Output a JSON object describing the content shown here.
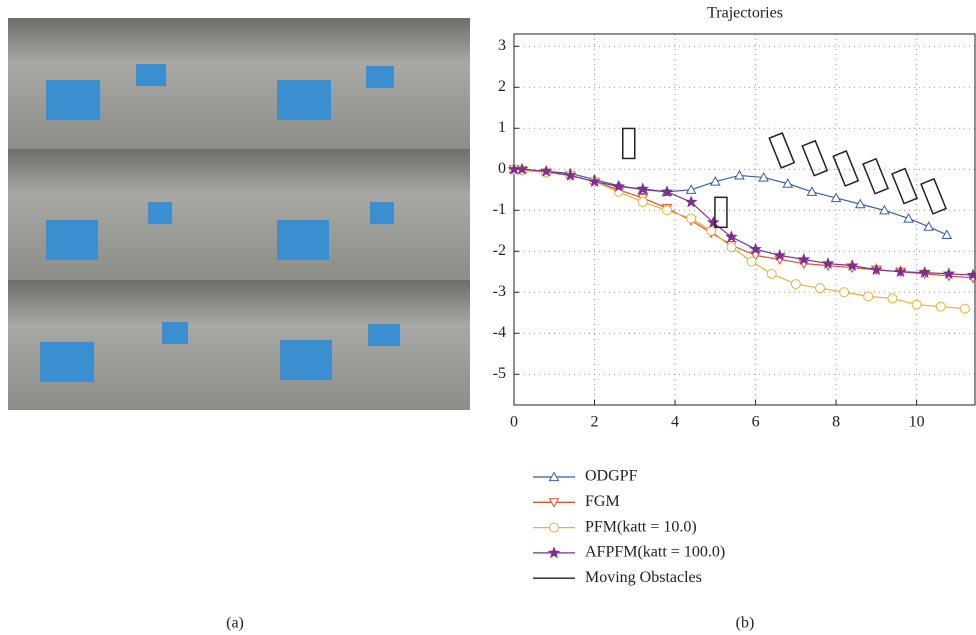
{
  "chart_data": {
    "type": "line",
    "title": "Trajectories",
    "xlim": [
      0,
      11.45
    ],
    "ylim": [
      -5.75,
      3.3
    ],
    "xticks": [
      0,
      2,
      4,
      6,
      8,
      10
    ],
    "yticks": [
      -5,
      -4,
      -3,
      -2,
      -1,
      0,
      1,
      2,
      3
    ],
    "grid": true,
    "series": [
      {
        "name": "ODGPF",
        "color": "#3b5ca8",
        "marker": "triangle-up",
        "x": [
          0,
          0.2,
          0.8,
          1.4,
          2.0,
          2.6,
          3.2,
          3.8,
          4.4,
          5.0,
          5.6,
          6.2,
          6.8,
          7.4,
          8.0,
          8.6,
          9.2,
          9.8,
          10.3,
          10.75
        ],
        "values": [
          0,
          0,
          -0.05,
          -0.1,
          -0.25,
          -0.4,
          -0.5,
          -0.55,
          -0.5,
          -0.3,
          -0.15,
          -0.2,
          -0.35,
          -0.55,
          -0.7,
          -0.85,
          -1.0,
          -1.2,
          -1.4,
          -1.6
        ]
      },
      {
        "name": "FGM",
        "color": "#e0502a",
        "marker": "triangle-down",
        "x": [
          0,
          0.2,
          0.8,
          1.4,
          2.0,
          2.6,
          3.2,
          3.8,
          4.4,
          4.9,
          5.4,
          6.0,
          6.6,
          7.2,
          7.8,
          8.4,
          9.0,
          9.6,
          10.2,
          10.8,
          11.4
        ],
        "values": [
          0,
          -0.02,
          -0.08,
          -0.15,
          -0.3,
          -0.5,
          -0.7,
          -0.95,
          -1.25,
          -1.55,
          -1.85,
          -2.1,
          -2.2,
          -2.3,
          -2.35,
          -2.4,
          -2.45,
          -2.5,
          -2.55,
          -2.6,
          -2.65
        ]
      },
      {
        "name": "PFM(katt = 10.0)",
        "color": "#eab041",
        "marker": "circle",
        "x": [
          0,
          0.2,
          0.8,
          1.4,
          2.0,
          2.6,
          3.2,
          3.8,
          4.4,
          4.9,
          5.4,
          5.9,
          6.4,
          7.0,
          7.6,
          8.2,
          8.8,
          9.4,
          10.0,
          10.6,
          11.2
        ],
        "values": [
          0,
          -0.02,
          -0.08,
          -0.15,
          -0.3,
          -0.55,
          -0.8,
          -1.0,
          -1.2,
          -1.5,
          -1.9,
          -2.25,
          -2.55,
          -2.8,
          -2.9,
          -3.0,
          -3.1,
          -3.15,
          -3.3,
          -3.35,
          -3.4
        ]
      },
      {
        "name": "AFPFM(katt = 100.0)",
        "color": "#7e2f8e",
        "marker": "star",
        "x": [
          0,
          0.2,
          0.8,
          1.4,
          2.0,
          2.6,
          3.2,
          3.8,
          4.4,
          4.95,
          5.4,
          6.0,
          6.6,
          7.2,
          7.8,
          8.4,
          9.0,
          9.6,
          10.2,
          10.8,
          11.4
        ],
        "values": [
          0,
          0,
          -0.05,
          -0.15,
          -0.3,
          -0.42,
          -0.48,
          -0.55,
          -0.8,
          -1.3,
          -1.65,
          -1.95,
          -2.1,
          -2.2,
          -2.3,
          -2.35,
          -2.45,
          -2.5,
          -2.52,
          -2.55,
          -2.58
        ]
      },
      {
        "name": "Moving Obstacles",
        "color": "#222222",
        "marker": "rect",
        "x": [
          2.85,
          5.14,
          6.65,
          7.47,
          8.24,
          8.98,
          9.7,
          10.42
        ],
        "values": [
          0.63,
          -1.05,
          0.46,
          0.27,
          0.02,
          -0.17,
          -0.41,
          -0.66
        ]
      }
    ],
    "captions": [
      "(a)",
      "(b)"
    ]
  }
}
